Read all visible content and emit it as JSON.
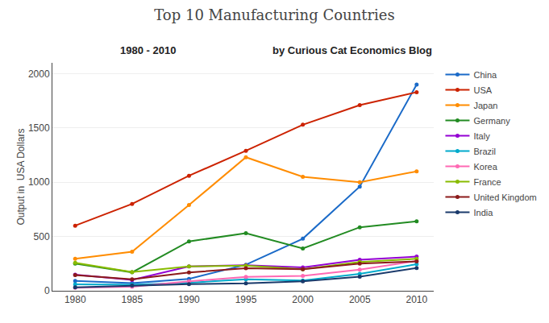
{
  "chart_data": {
    "type": "line",
    "title": "Top 10 Manufacturing Countries",
    "subtitle": [
      "1980 - 2010",
      "by Curious Cat Economics Blog"
    ],
    "ylabel": "Output in  USA Dollars",
    "x": [
      1980,
      1985,
      1990,
      1995,
      2000,
      2005,
      2010
    ],
    "series": [
      {
        "name": "China",
        "color": "#1a6ac8",
        "values": [
          90,
          70,
          110,
          240,
          480,
          960,
          1900
        ]
      },
      {
        "name": "USA",
        "color": "#cc2200",
        "values": [
          600,
          800,
          1060,
          1290,
          1530,
          1710,
          1830
        ]
      },
      {
        "name": "Japan",
        "color": "#ff8c00",
        "values": [
          295,
          360,
          790,
          1230,
          1050,
          1000,
          1100
        ]
      },
      {
        "name": "Germany",
        "color": "#228b22",
        "values": [
          250,
          170,
          455,
          530,
          390,
          585,
          640
        ]
      },
      {
        "name": "Italy",
        "color": "#9400d3",
        "values": [
          148,
          100,
          225,
          235,
          215,
          285,
          315
        ]
      },
      {
        "name": "Brazil",
        "color": "#00aacc",
        "values": [
          60,
          55,
          75,
          105,
          95,
          155,
          245
        ]
      },
      {
        "name": "Korea",
        "color": "#ff69b4",
        "values": [
          28,
          38,
          88,
          128,
          138,
          195,
          275
        ]
      },
      {
        "name": "France",
        "color": "#88bb00",
        "values": [
          258,
          172,
          225,
          232,
          198,
          265,
          295
        ]
      },
      {
        "name": "United Kingdom",
        "color": "#8b1a1a",
        "values": [
          145,
          105,
          168,
          208,
          198,
          250,
          270
        ]
      },
      {
        "name": "India",
        "color": "#1a3a6b",
        "values": [
          32,
          48,
          62,
          68,
          88,
          130,
          210
        ]
      }
    ],
    "xlim": [
      1978,
      2011.5
    ],
    "xticks": [
      1980,
      1985,
      1990,
      1995,
      2000,
      2005,
      2010
    ],
    "ylim": [
      0,
      2100
    ],
    "yticks": [
      0,
      500,
      1000,
      1500,
      2000
    ],
    "grid": "y",
    "legend": "right",
    "marker": "circle",
    "line_style": "solid"
  }
}
